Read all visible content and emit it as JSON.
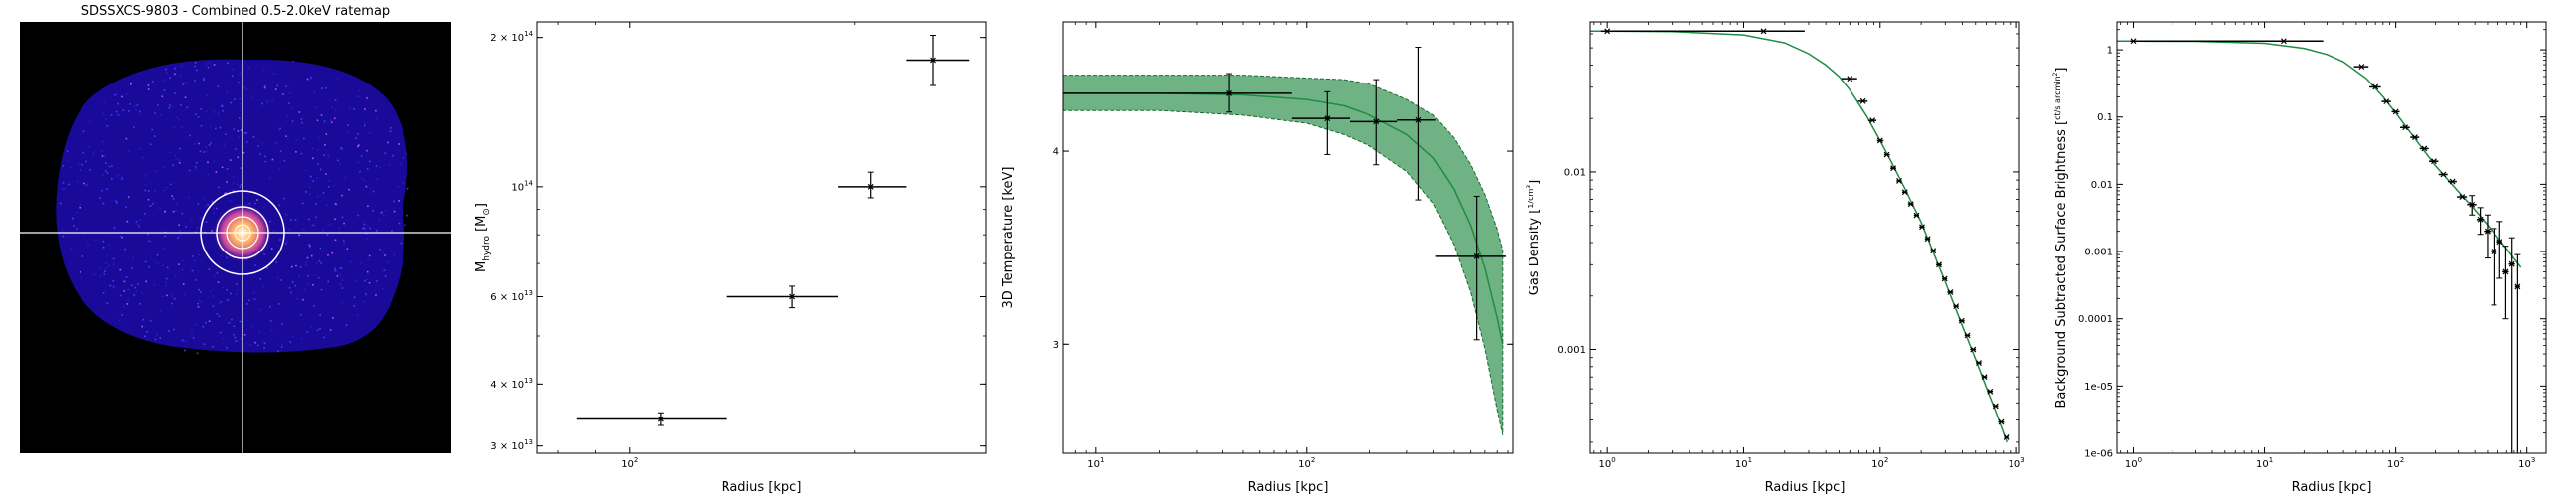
{
  "chart_data": [
    {
      "type": "heatmap",
      "title": "SDSSXCS-9803 - Combined 0.5-2.0keV ratemap",
      "colormap": "gnuplot2",
      "crosshair_color": "#ffffff"
    },
    {
      "type": "scatter",
      "xscale": "log",
      "yscale": "log",
      "xlabel": "Radius [kpc]",
      "ylabel_main": "M",
      "ylabel_sub": "hydro",
      "ylabel_unit": " [M",
      "ylabel_unit_sub": "⊙",
      "ylabel_end": "]",
      "xlim": [
        75,
        300
      ],
      "ylim": [
        29000000000000.0,
        215000000000000.0
      ],
      "xticks": [
        {
          "value": 100,
          "label": "10",
          "sup": "2"
        }
      ],
      "yticks": [
        {
          "value": 200000000000000.0,
          "label": "2 × 10",
          "sup": "14"
        },
        {
          "value": 100000000000000.0,
          "label": "10",
          "sup": "14"
        },
        {
          "value": 60000000000000.0,
          "label": "6 × 10",
          "sup": "13"
        },
        {
          "value": 40000000000000.0,
          "label": "4 × 10",
          "sup": "13"
        },
        {
          "value": 30000000000000.0,
          "label": "3 × 10",
          "sup": "13"
        }
      ],
      "points": [
        {
          "x": 110,
          "xlo": 85,
          "xhi": 135,
          "y": 34000000000000.0,
          "ylo": 33000000000000.0,
          "yhi": 35000000000000.0
        },
        {
          "x": 165,
          "xlo": 135,
          "xhi": 190,
          "y": 60000000000000.0,
          "ylo": 57000000000000.0,
          "yhi": 63000000000000.0
        },
        {
          "x": 210,
          "xlo": 190,
          "xhi": 235,
          "y": 100000000000000.0,
          "ylo": 95000000000000.0,
          "yhi": 107000000000000.0
        },
        {
          "x": 255,
          "xlo": 235,
          "xhi": 285,
          "y": 180000000000000.0,
          "ylo": 160000000000000.0,
          "yhi": 202000000000000.0
        }
      ],
      "color": "#000000"
    },
    {
      "type": "line",
      "xscale": "log",
      "yscale": "log",
      "xlabel": "Radius [kpc]",
      "ylabel": "3D Temperature [keV]",
      "xlim": [
        7,
        950
      ],
      "ylim": [
        2.55,
        4.85
      ],
      "xticks": [
        {
          "value": 10,
          "label": "10",
          "sup": "1"
        },
        {
          "value": 100,
          "label": "10",
          "sup": "2"
        }
      ],
      "yticks": [
        {
          "value": 4,
          "label": "4"
        },
        {
          "value": 3,
          "label": "3"
        }
      ],
      "model": {
        "x": [
          7,
          20,
          50,
          100,
          150,
          200,
          300,
          400,
          500,
          600,
          700,
          800,
          850
        ],
        "y": [
          4.36,
          4.36,
          4.35,
          4.32,
          4.28,
          4.22,
          4.1,
          3.96,
          3.78,
          3.58,
          3.36,
          3.12,
          3.0
        ],
        "lower": [
          4.25,
          4.25,
          4.22,
          4.17,
          4.1,
          4.03,
          3.88,
          3.7,
          3.48,
          3.24,
          2.98,
          2.72,
          2.62
        ],
        "upper": [
          4.48,
          4.48,
          4.48,
          4.46,
          4.45,
          4.42,
          4.32,
          4.22,
          4.08,
          3.92,
          3.75,
          3.56,
          3.45
        ],
        "color": "#228b44"
      },
      "points": [
        {
          "x": 43,
          "xlo": 7,
          "xhi": 85,
          "y": 4.36,
          "ylo": 4.24,
          "yhi": 4.49
        },
        {
          "x": 125,
          "xlo": 85,
          "xhi": 160,
          "y": 4.2,
          "ylo": 3.98,
          "yhi": 4.37
        },
        {
          "x": 215,
          "xlo": 160,
          "xhi": 270,
          "y": 4.18,
          "ylo": 3.92,
          "yhi": 4.45
        },
        {
          "x": 340,
          "xlo": 270,
          "xhi": 410,
          "y": 4.19,
          "ylo": 3.72,
          "yhi": 4.67
        },
        {
          "x": 640,
          "xlo": 410,
          "xhi": 880,
          "y": 3.42,
          "ylo": 3.02,
          "yhi": 3.74
        }
      ]
    },
    {
      "type": "line",
      "xscale": "log",
      "yscale": "log",
      "xlabel": "Radius [kpc]",
      "ylabel_main": "Gas Density ",
      "ylabel_frac_num": "1",
      "ylabel_frac_den": "cm",
      "ylabel_frac_sup": "3",
      "xlim": [
        0.75,
        1050
      ],
      "ylim": [
        0.00026,
        0.07
      ],
      "xticks": [
        {
          "value": 1,
          "label": "10",
          "sup": "0"
        },
        {
          "value": 10,
          "label": "10",
          "sup": "1"
        },
        {
          "value": 100,
          "label": "10",
          "sup": "2"
        },
        {
          "value": 1000,
          "label": "10",
          "sup": "3"
        }
      ],
      "yticks": [
        {
          "value": 0.01,
          "label": "0.01"
        },
        {
          "value": 0.001,
          "label": "0.001"
        }
      ],
      "model": {
        "x": [
          0.75,
          1,
          3,
          10,
          20,
          30,
          40,
          50,
          60,
          80,
          100,
          120,
          150,
          200,
          300,
          400,
          500,
          600,
          700,
          800,
          850
        ],
        "y": [
          0.0621,
          0.0621,
          0.0618,
          0.0591,
          0.0533,
          0.0463,
          0.04,
          0.0345,
          0.029,
          0.0205,
          0.015,
          0.0115,
          0.0082,
          0.0052,
          0.0024,
          0.00136,
          0.00088,
          0.00061,
          0.00045,
          0.00034,
          0.0003
        ],
        "color": "#228b44"
      },
      "points": [
        {
          "x": 1,
          "xlo": 0.9,
          "xhi": 1.1,
          "y": 0.0621
        },
        {
          "x": 14,
          "xlo": 0.9,
          "xhi": 28,
          "y": 0.0621
        },
        {
          "x": 60,
          "xlo": 52,
          "xhi": 68,
          "y": 0.0335
        },
        {
          "x": 75,
          "xlo": 69,
          "xhi": 81,
          "y": 0.025
        },
        {
          "x": 88,
          "xlo": 82,
          "xhi": 94,
          "y": 0.0195
        },
        {
          "x": 100,
          "xlo": 95,
          "xhi": 106,
          "y": 0.015
        },
        {
          "x": 112,
          "xlo": 107,
          "xhi": 118,
          "y": 0.0125
        },
        {
          "x": 125,
          "xlo": 119,
          "xhi": 131,
          "y": 0.0105
        },
        {
          "x": 138,
          "xlo": 132,
          "xhi": 144,
          "y": 0.0089
        },
        {
          "x": 152,
          "xlo": 145,
          "xhi": 159,
          "y": 0.0077
        },
        {
          "x": 168,
          "xlo": 160,
          "xhi": 176,
          "y": 0.0066
        },
        {
          "x": 185,
          "xlo": 177,
          "xhi": 193,
          "y": 0.0057
        },
        {
          "x": 203,
          "xlo": 194,
          "xhi": 212,
          "y": 0.0049
        },
        {
          "x": 223,
          "xlo": 213,
          "xhi": 233,
          "y": 0.0042
        },
        {
          "x": 245,
          "xlo": 234,
          "xhi": 256,
          "y": 0.0036
        },
        {
          "x": 270,
          "xlo": 257,
          "xhi": 283,
          "y": 0.003
        },
        {
          "x": 297,
          "xlo": 284,
          "xhi": 310,
          "y": 0.0025
        },
        {
          "x": 327,
          "xlo": 311,
          "xhi": 343,
          "y": 0.0021
        },
        {
          "x": 360,
          "xlo": 344,
          "xhi": 376,
          "y": 0.00175
        },
        {
          "x": 396,
          "xlo": 377,
          "xhi": 415,
          "y": 0.00145
        },
        {
          "x": 436,
          "xlo": 416,
          "xhi": 456,
          "y": 0.0012
        },
        {
          "x": 480,
          "xlo": 457,
          "xhi": 503,
          "y": 0.001
        },
        {
          "x": 528,
          "xlo": 504,
          "xhi": 552,
          "y": 0.00084
        },
        {
          "x": 580,
          "xlo": 553,
          "xhi": 607,
          "y": 0.0007
        },
        {
          "x": 638,
          "xlo": 608,
          "xhi": 668,
          "y": 0.00058
        },
        {
          "x": 700,
          "xlo": 669,
          "xhi": 731,
          "y": 0.00048
        },
        {
          "x": 770,
          "xlo": 732,
          "xhi": 808,
          "y": 0.00039
        },
        {
          "x": 840,
          "xlo": 809,
          "xhi": 871,
          "y": 0.00032
        }
      ]
    },
    {
      "type": "line",
      "xscale": "log",
      "yscale": "log",
      "xlabel": "Radius [kpc]",
      "ylabel_main": "Background Subtracted Surface Brightness ",
      "ylabel_frac_num": "ct",
      "ylabel_frac_den": "s arcmin",
      "ylabel_frac_sup": "2",
      "xlim": [
        0.75,
        1400
      ],
      "ylim": [
        1e-06,
        2.6
      ],
      "xticks": [
        {
          "value": 1,
          "label": "10",
          "sup": "0"
        },
        {
          "value": 10,
          "label": "10",
          "sup": "1"
        },
        {
          "value": 100,
          "label": "10",
          "sup": "2"
        },
        {
          "value": 1000,
          "label": "10",
          "sup": "3"
        }
      ],
      "yticks": [
        {
          "value": 1,
          "label": "1"
        },
        {
          "value": 0.1,
          "label": "0.1"
        },
        {
          "value": 0.01,
          "label": "0.01"
        },
        {
          "value": 0.001,
          "label": "0.001"
        },
        {
          "value": 0.0001,
          "label": "0.0001"
        },
        {
          "value": 1e-05,
          "label": "1e-05"
        },
        {
          "value": 1e-06,
          "label": "1e-06"
        }
      ],
      "model": {
        "x": [
          0.75,
          1,
          3,
          10,
          20,
          30,
          40,
          60,
          80,
          100,
          150,
          200,
          300,
          400,
          500,
          600,
          700,
          800,
          900
        ],
        "y": [
          1.35,
          1.35,
          1.34,
          1.25,
          1.05,
          0.85,
          0.66,
          0.37,
          0.2,
          0.115,
          0.04,
          0.019,
          0.0078,
          0.0042,
          0.0025,
          0.0016,
          0.0011,
          0.00078,
          0.00058
        ],
        "color": "#228b44"
      },
      "points": [
        {
          "x": 1,
          "xlo": 0.95,
          "xhi": 1.05,
          "y": 1.35
        },
        {
          "x": 14,
          "xlo": 0.95,
          "xhi": 28,
          "y": 1.35
        },
        {
          "x": 55,
          "xlo": 48,
          "xhi": 62,
          "y": 0.56
        },
        {
          "x": 70,
          "xlo": 63,
          "xhi": 77,
          "y": 0.28
        },
        {
          "x": 85,
          "xlo": 78,
          "xhi": 92,
          "y": 0.17
        },
        {
          "x": 100,
          "xlo": 93,
          "xhi": 107,
          "y": 0.12
        },
        {
          "x": 118,
          "xlo": 108,
          "xhi": 128,
          "y": 0.07
        },
        {
          "x": 140,
          "xlo": 129,
          "xhi": 151,
          "y": 0.05
        },
        {
          "x": 165,
          "xlo": 152,
          "xhi": 178,
          "y": 0.034
        },
        {
          "x": 195,
          "xlo": 179,
          "xhi": 211,
          "y": 0.022
        },
        {
          "x": 230,
          "xlo": 212,
          "xhi": 248,
          "y": 0.014
        },
        {
          "x": 270,
          "xlo": 249,
          "xhi": 291,
          "y": 0.011
        },
        {
          "x": 320,
          "xlo": 292,
          "xhi": 348,
          "y": 0.0065
        },
        {
          "x": 380,
          "xlo": 349,
          "xhi": 411,
          "y": 0.005,
          "ylo": 0.0035,
          "yhi": 0.0068
        },
        {
          "x": 440,
          "xlo": 412,
          "xhi": 468,
          "y": 0.003,
          "ylo": 0.0018,
          "yhi": 0.0045
        },
        {
          "x": 500,
          "xlo": 469,
          "xhi": 531,
          "y": 0.002,
          "ylo": 0.0008,
          "yhi": 0.0035
        },
        {
          "x": 560,
          "xlo": 532,
          "xhi": 588,
          "y": 0.001,
          "ylo": 0.00016,
          "yhi": 0.0022
        },
        {
          "x": 620,
          "xlo": 589,
          "xhi": 651,
          "y": 0.0014,
          "ylo": 0.0004,
          "yhi": 0.0028
        },
        {
          "x": 690,
          "xlo": 652,
          "xhi": 728,
          "y": 0.0005,
          "ylo": 0.0001,
          "yhi": 0.0012
        },
        {
          "x": 770,
          "xlo": 729,
          "xhi": 811,
          "y": 0.00065,
          "ylo": 1e-06,
          "yhi": 0.0016
        },
        {
          "x": 850,
          "xlo": 812,
          "xhi": 888,
          "y": 0.0003,
          "ylo": 1e-06,
          "yhi": 0.0009
        }
      ]
    }
  ]
}
